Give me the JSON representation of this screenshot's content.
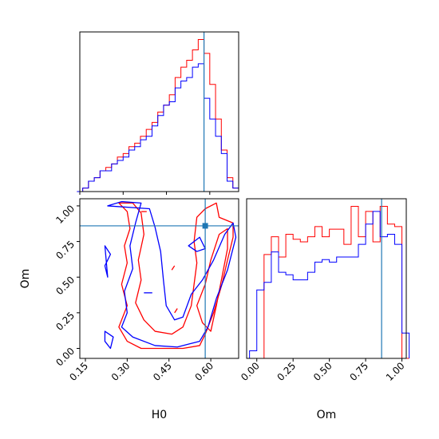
{
  "chart_data": {
    "type": "corner",
    "parameters": [
      "H0",
      "Om"
    ],
    "truth": {
      "H0": 0.58,
      "Om": 0.86
    },
    "colors": {
      "series_a": "#ff0000",
      "series_b": "#0000ff",
      "truth": "#1f77b4"
    },
    "panels": [
      {
        "id": "hist-H0",
        "type": "step-histogram",
        "x": "H0",
        "xlim": [
          0.15,
          0.7
        ],
        "bin_edges": [
          0.14,
          0.16,
          0.18,
          0.2,
          0.22,
          0.24,
          0.26,
          0.28,
          0.3,
          0.32,
          0.34,
          0.36,
          0.38,
          0.4,
          0.42,
          0.44,
          0.46,
          0.48,
          0.5,
          0.52,
          0.54,
          0.56,
          0.58,
          0.6,
          0.62,
          0.64,
          0.66,
          0.68,
          0.7
        ],
        "series": [
          {
            "color": "red",
            "counts": [
              0,
              1,
              3,
              4,
              6,
              7,
              8,
              10,
              11,
              13,
              14,
              16,
              18,
              20,
              23,
              25,
              28,
              33,
              36,
              38,
              41,
              44,
              40,
              31,
              21,
              12,
              4,
              1
            ]
          },
          {
            "color": "blue",
            "counts": [
              0,
              1,
              3,
              4,
              6,
              6,
              8,
              9,
              10,
              12,
              13,
              15,
              16,
              19,
              22,
              25,
              26,
              30,
              32,
              33,
              36,
              37,
              27,
              21,
              16,
              11,
              3,
              1
            ]
          }
        ],
        "xticks": [
          0.15,
          0.3,
          0.45,
          0.6
        ]
      },
      {
        "id": "contour-H0-Om",
        "type": "contour",
        "x": "H0",
        "y": "Om",
        "xlim": [
          0.13,
          0.7
        ],
        "ylim": [
          -0.07,
          1.05
        ],
        "xticks": [
          0.15,
          0.3,
          0.45,
          0.6
        ],
        "yticks": [
          0.0,
          0.25,
          0.5,
          0.75,
          1.0
        ],
        "xlabel": "H0",
        "ylabel": "Om",
        "series": [
          {
            "color": "red",
            "contours": [
              [
                [
                  0.27,
                  1.02
                ],
                [
                  0.3,
                  0.96
                ],
                [
                  0.31,
                  0.84
                ],
                [
                  0.29,
                  0.72
                ],
                [
                  0.3,
                  0.6
                ],
                [
                  0.28,
                  0.45
                ],
                [
                  0.3,
                  0.3
                ],
                [
                  0.27,
                  0.15
                ],
                [
                  0.3,
                  0.05
                ],
                [
                  0.35,
                  0.0
                ],
                [
                  0.5,
                  0.0
                ],
                [
                  0.56,
                  0.02
                ],
                [
                  0.58,
                  0.1
                ],
                [
                  0.61,
                  0.25
                ],
                [
                  0.64,
                  0.45
                ],
                [
                  0.66,
                  0.62
                ],
                [
                  0.68,
                  0.78
                ],
                [
                  0.68,
                  0.88
                ],
                [
                  0.63,
                  0.92
                ],
                [
                  0.62,
                  1.02
                ],
                [
                  0.58,
                  0.98
                ],
                [
                  0.55,
                  0.92
                ],
                [
                  0.54,
                  0.75
                ],
                [
                  0.55,
                  0.6
                ],
                [
                  0.54,
                  0.45
                ],
                [
                  0.53,
                  0.3
                ],
                [
                  0.5,
                  0.15
                ],
                [
                  0.46,
                  0.1
                ],
                [
                  0.4,
                  0.12
                ],
                [
                  0.36,
                  0.2
                ],
                [
                  0.33,
                  0.32
                ],
                [
                  0.35,
                  0.48
                ],
                [
                  0.34,
                  0.62
                ],
                [
                  0.36,
                  0.8
                ],
                [
                  0.35,
                  0.95
                ],
                [
                  0.32,
                  1.02
                ]
              ],
              [
                [
                  0.55,
                  0.3
                ],
                [
                  0.57,
                  0.18
                ],
                [
                  0.6,
                  0.12
                ],
                [
                  0.62,
                  0.3
                ],
                [
                  0.64,
                  0.5
                ],
                [
                  0.66,
                  0.7
                ],
                [
                  0.66,
                  0.84
                ],
                [
                  0.63,
                  0.8
                ],
                [
                  0.6,
                  0.62
                ],
                [
                  0.58,
                  0.45
                ]
              ],
              [
                [
                  0.46,
                  0.55
                ],
                [
                  0.47,
                  0.58
                ]
              ],
              [
                [
                  0.47,
                  0.25
                ],
                [
                  0.48,
                  0.28
                ]
              ],
              [
                [
                  0.35,
                  0.96
                ],
                [
                  0.37,
                  0.96
                ]
              ]
            ]
          },
          {
            "color": "blue",
            "contours": [
              [
                [
                  0.23,
                  1.0
                ],
                [
                  0.28,
                  1.03
                ],
                [
                  0.35,
                  1.02
                ],
                [
                  0.33,
                  0.88
                ],
                [
                  0.31,
                  0.72
                ],
                [
                  0.32,
                  0.56
                ],
                [
                  0.29,
                  0.4
                ],
                [
                  0.3,
                  0.25
                ],
                [
                  0.28,
                  0.15
                ],
                [
                  0.32,
                  0.08
                ],
                [
                  0.4,
                  0.02
                ],
                [
                  0.48,
                  0.01
                ],
                [
                  0.52,
                  0.03
                ],
                [
                  0.56,
                  0.05
                ],
                [
                  0.59,
                  0.15
                ],
                [
                  0.62,
                  0.35
                ],
                [
                  0.66,
                  0.55
                ],
                [
                  0.69,
                  0.78
                ],
                [
                  0.68,
                  0.88
                ],
                [
                  0.65,
                  0.8
                ],
                [
                  0.61,
                  0.62
                ],
                [
                  0.57,
                  0.48
                ],
                [
                  0.53,
                  0.38
                ],
                [
                  0.5,
                  0.22
                ],
                [
                  0.47,
                  0.2
                ],
                [
                  0.44,
                  0.3
                ],
                [
                  0.43,
                  0.48
                ],
                [
                  0.42,
                  0.68
                ],
                [
                  0.4,
                  0.85
                ],
                [
                  0.38,
                  0.98
                ]
              ],
              [
                [
                  0.22,
                  0.72
                ],
                [
                  0.24,
                  0.66
                ],
                [
                  0.22,
                  0.58
                ],
                [
                  0.23,
                  0.5
                ]
              ],
              [
                [
                  0.22,
                  0.12
                ],
                [
                  0.25,
                  0.08
                ],
                [
                  0.24,
                  0.0
                ],
                [
                  0.22,
                  0.05
                ]
              ],
              [
                [
                  0.52,
                  0.72
                ],
                [
                  0.55,
                  0.68
                ],
                [
                  0.58,
                  0.7
                ],
                [
                  0.56,
                  0.78
                ]
              ],
              [
                [
                  0.36,
                  0.39
                ],
                [
                  0.39,
                  0.39
                ]
              ]
            ]
          }
        ]
      },
      {
        "id": "hist-Om",
        "type": "step-histogram",
        "x": "Om",
        "xlim": [
          -0.07,
          1.03
        ],
        "bin_edges": [
          -0.05,
          0.0,
          0.05,
          0.1,
          0.15,
          0.2,
          0.25,
          0.3,
          0.35,
          0.4,
          0.45,
          0.5,
          0.55,
          0.6,
          0.65,
          0.7,
          0.75,
          0.8,
          0.85,
          0.9,
          0.95,
          1.0,
          1.05
        ],
        "series": [
          {
            "color": "red",
            "counts": [
              0,
              0,
              41,
              48,
              40,
              49,
              47,
              46,
              48,
              52,
              48,
              51,
              51,
              45,
              60,
              48,
              58,
              46,
              60,
              53,
              52,
              0
            ]
          },
          {
            "color": "blue",
            "counts": [
              3,
              27,
              30,
              42,
              34,
              33,
              31,
              31,
              34,
              38,
              39,
              38,
              40,
              40,
              40,
              45,
              53,
              58,
              48,
              49,
              45,
              10
            ]
          }
        ],
        "xticks": [
          0.0,
          0.25,
          0.5,
          0.75,
          1.0
        ],
        "xlabel": "Om"
      }
    ]
  }
}
